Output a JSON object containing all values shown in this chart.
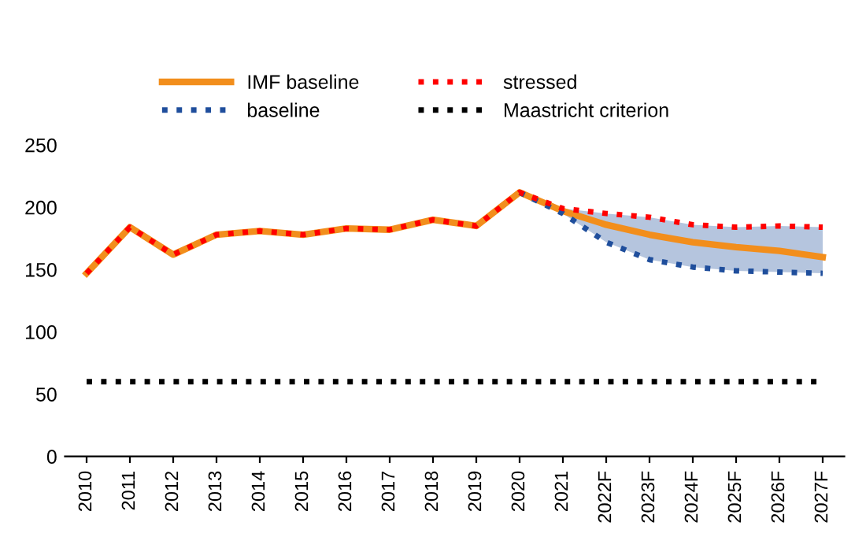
{
  "chart_data": {
    "type": "line",
    "categories": [
      "2010",
      "2011",
      "2012",
      "2013",
      "2014",
      "2015",
      "2016",
      "2017",
      "2018",
      "2019",
      "2020",
      "2021",
      "2022F",
      "2023F",
      "2024F",
      "2025F",
      "2026F",
      "2027F"
    ],
    "series": [
      {
        "name": "IMF baseline",
        "color": "#f28e1c",
        "line_style": "solid",
        "values": [
          147,
          184,
          162,
          178,
          181,
          178,
          183,
          182,
          190,
          185,
          212,
          197,
          186,
          178,
          172,
          168,
          165,
          160
        ]
      },
      {
        "name": "baseline",
        "color": "#1f4e9c",
        "line_style": "dotted",
        "values": [
          null,
          null,
          null,
          null,
          null,
          null,
          null,
          null,
          null,
          null,
          212,
          195,
          172,
          158,
          152,
          149,
          148,
          147
        ],
        "lower": [
          null,
          null,
          null,
          null,
          null,
          null,
          null,
          null,
          null,
          null,
          212,
          195,
          172,
          158,
          152,
          149,
          148,
          147
        ],
        "upper": [
          null,
          null,
          null,
          null,
          null,
          null,
          null,
          null,
          null,
          null,
          212,
          199,
          195,
          192,
          186,
          184,
          185,
          184
        ]
      },
      {
        "name": "stressed",
        "color": "#ff0000",
        "line_style": "dotted",
        "values": [
          147,
          184,
          162,
          178,
          181,
          178,
          183,
          182,
          190,
          185,
          212,
          199,
          195,
          192,
          186,
          184,
          185,
          184
        ]
      },
      {
        "name": "Maastricht criterion",
        "color": "#000000",
        "line_style": "dotted",
        "values": [
          60,
          60,
          60,
          60,
          60,
          60,
          60,
          60,
          60,
          60,
          60,
          60,
          60,
          60,
          60,
          60,
          60,
          60
        ]
      }
    ],
    "ylim": [
      0,
      250
    ],
    "yticks": [
      0,
      50,
      100,
      150,
      200,
      250
    ],
    "grid": false,
    "legend": "top",
    "marker": "none"
  }
}
